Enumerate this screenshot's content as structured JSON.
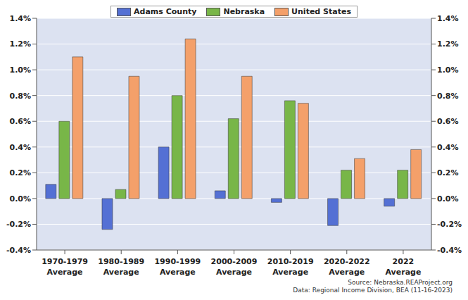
{
  "chart_data": {
    "type": "bar",
    "categories": [
      "1970-1979 Average",
      "1980-1989 Average",
      "1990-1999 Average",
      "2000-2009 Average",
      "2010-2019 Average",
      "2020-2022 Average",
      "2022 Average"
    ],
    "series": [
      {
        "name": "Adams County",
        "color": "#5470d4",
        "values": [
          0.11,
          -0.24,
          0.4,
          0.06,
          -0.03,
          -0.21,
          -0.06
        ]
      },
      {
        "name": "Nebraska",
        "color": "#78b648",
        "values": [
          0.6,
          0.07,
          0.8,
          0.62,
          0.76,
          0.22,
          0.22
        ]
      },
      {
        "name": "United States",
        "color": "#f4a06a",
        "values": [
          1.1,
          0.95,
          1.24,
          0.95,
          0.74,
          0.31,
          0.38
        ]
      }
    ],
    "ylim": [
      -0.4,
      1.4
    ],
    "yticks": [
      {
        "value": -0.4,
        "label": "-0.4%"
      },
      {
        "value": -0.2,
        "label": "-0.2%"
      },
      {
        "value": 0,
        "label": "0.0%"
      },
      {
        "value": 0.2,
        "label": "0.2%"
      },
      {
        "value": 0.4,
        "label": "0.4%"
      },
      {
        "value": 0.6,
        "label": "0.6%"
      },
      {
        "value": 0.8,
        "label": "0.8%"
      },
      {
        "value": 1.0,
        "label": "1.0%"
      },
      {
        "value": 1.2,
        "label": "1.2%"
      },
      {
        "value": 1.4,
        "label": "1.4%"
      }
    ],
    "grid": true,
    "legend": "top",
    "annotations": [
      "Source: Nebraska.REAProject.org",
      "Data: Regional Income Division, BEA (11-16-2023)"
    ]
  }
}
